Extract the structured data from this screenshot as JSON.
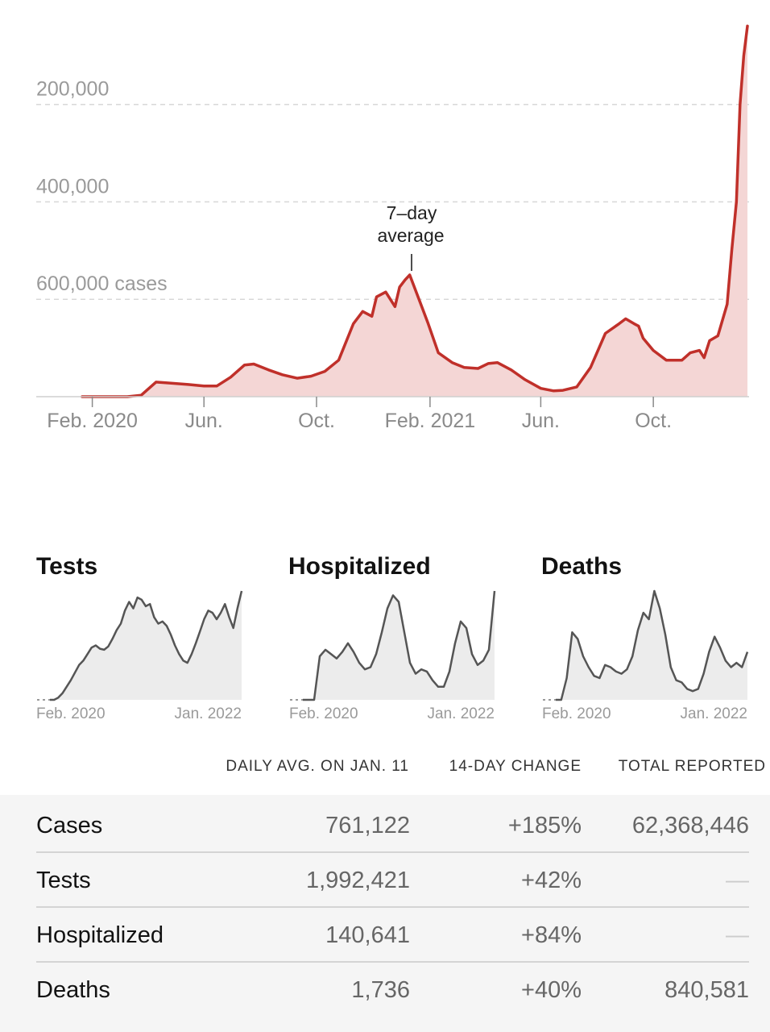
{
  "main_chart": {
    "y_ticks": [
      "600,000 cases",
      "400,000",
      "200,000"
    ],
    "x_ticks": [
      "Feb. 2020",
      "Jun.",
      "Oct.",
      "Feb. 2021",
      "Jun.",
      "Oct."
    ],
    "annotation": [
      "7–day",
      "average"
    ],
    "colors": {
      "line": "#c0302a",
      "fill": "#f4d6d5",
      "grid": "#d8d8d8"
    }
  },
  "small_charts": [
    {
      "title": "Tests",
      "x_start": "Feb. 2020",
      "x_end": "Jan. 2022"
    },
    {
      "title": "Hospitalized",
      "x_start": "Feb. 2020",
      "x_end": "Jan. 2022"
    },
    {
      "title": "Deaths",
      "x_start": "Feb. 2020",
      "x_end": "Jan. 2022"
    }
  ],
  "table": {
    "headers": {
      "daily": "DAILY AVG. ON JAN. 11",
      "change": "14-DAY CHANGE",
      "total": "TOTAL REPORTED"
    },
    "rows": [
      {
        "label": "Cases",
        "daily": "761,122",
        "change": "+185%",
        "total": "62,368,446"
      },
      {
        "label": "Tests",
        "daily": "1,992,421",
        "change": "+42%",
        "total": "—"
      },
      {
        "label": "Hospitalized",
        "daily": "140,641",
        "change": "+84%",
        "total": "—"
      },
      {
        "label": "Deaths",
        "daily": "1,736",
        "change": "+40%",
        "total": "840,581"
      }
    ]
  },
  "chart_data": [
    {
      "type": "area",
      "x": [
        "2020-01-21",
        "2020-02-15",
        "2020-03-10",
        "2020-03-25",
        "2020-04-10",
        "2020-04-25",
        "2020-05-15",
        "2020-06-01",
        "2020-06-15",
        "2020-06-30",
        "2020-07-15",
        "2020-07-25",
        "2020-08-10",
        "2020-08-25",
        "2020-09-10",
        "2020-09-25",
        "2020-10-10",
        "2020-10-25",
        "2020-11-10",
        "2020-11-20",
        "2020-11-30",
        "2020-12-05",
        "2020-12-15",
        "2020-12-25",
        "2020-12-30",
        "2021-01-05",
        "2021-01-10",
        "2021-01-20",
        "2021-01-30",
        "2021-02-10",
        "2021-02-25",
        "2021-03-10",
        "2021-03-25",
        "2021-04-05",
        "2021-04-15",
        "2021-04-30",
        "2021-05-15",
        "2021-06-01",
        "2021-06-15",
        "2021-06-25",
        "2021-07-10",
        "2021-07-25",
        "2021-08-10",
        "2021-08-25",
        "2021-09-01",
        "2021-09-10",
        "2021-09-15",
        "2021-09-20",
        "2021-10-01",
        "2021-10-15",
        "2021-11-01",
        "2021-11-10",
        "2021-11-20",
        "2021-11-25",
        "2021-12-01",
        "2021-12-10",
        "2021-12-20",
        "2021-12-25",
        "2021-12-30",
        "2022-01-03",
        "2022-01-07",
        "2022-01-11"
      ],
      "y": [
        0,
        0,
        0,
        3000,
        30000,
        28000,
        25000,
        22000,
        22000,
        40000,
        65000,
        67000,
        55000,
        45000,
        38000,
        42000,
        52000,
        75000,
        150000,
        175000,
        165000,
        205000,
        215000,
        185000,
        225000,
        240000,
        250000,
        200000,
        150000,
        90000,
        70000,
        60000,
        58000,
        68000,
        70000,
        55000,
        35000,
        17000,
        12000,
        13000,
        20000,
        60000,
        130000,
        150000,
        160000,
        150000,
        145000,
        120000,
        95000,
        75000,
        75000,
        90000,
        95000,
        80000,
        115000,
        125000,
        190000,
        300000,
        400000,
        600000,
        700000,
        761122
      ],
      "ylim": [
        0,
        760000
      ],
      "y_ticks": [
        200000,
        400000,
        600000
      ],
      "x_tick_labels": [
        "Feb. 2020",
        "Jun.",
        "Oct.",
        "Feb. 2021",
        "Jun.",
        "Oct."
      ],
      "annotation": {
        "text": "7–day average",
        "x": "2021-01-10"
      },
      "grid": true
    },
    {
      "type": "area",
      "title": "Tests",
      "x_labels": [
        "Feb. 2020",
        "Jan. 2022"
      ],
      "values": [
        0,
        0,
        0.02,
        0.06,
        0.12,
        0.18,
        0.25,
        0.32,
        0.36,
        0.42,
        0.48,
        0.5,
        0.47,
        0.46,
        0.49,
        0.56,
        0.64,
        0.7,
        0.82,
        0.9,
        0.84,
        0.94,
        0.92,
        0.86,
        0.88,
        0.76,
        0.7,
        0.72,
        0.68,
        0.6,
        0.5,
        0.42,
        0.36,
        0.34,
        0.42,
        0.52,
        0.63,
        0.74,
        0.82,
        0.8,
        0.74,
        0.8,
        0.88,
        0.76,
        0.66,
        0.84,
        1.0
      ]
    },
    {
      "type": "area",
      "title": "Hospitalized",
      "x_labels": [
        "Feb. 2020",
        "Jan. 2022"
      ],
      "values": [
        0,
        0,
        0,
        0.4,
        0.46,
        0.42,
        0.38,
        0.44,
        0.52,
        0.44,
        0.34,
        0.28,
        0.3,
        0.42,
        0.62,
        0.84,
        0.96,
        0.9,
        0.62,
        0.34,
        0.24,
        0.28,
        0.26,
        0.18,
        0.12,
        0.12,
        0.26,
        0.52,
        0.72,
        0.66,
        0.42,
        0.32,
        0.36,
        0.46,
        1.0
      ]
    },
    {
      "type": "area",
      "title": "Deaths",
      "x_labels": [
        "Feb. 2020",
        "Jan. 2022"
      ],
      "values": [
        0,
        0,
        0.2,
        0.62,
        0.56,
        0.4,
        0.3,
        0.22,
        0.2,
        0.32,
        0.3,
        0.26,
        0.24,
        0.28,
        0.4,
        0.64,
        0.8,
        0.74,
        1.0,
        0.84,
        0.6,
        0.3,
        0.18,
        0.16,
        0.1,
        0.08,
        0.1,
        0.24,
        0.44,
        0.58,
        0.48,
        0.36,
        0.3,
        0.34,
        0.3,
        0.44
      ]
    }
  ]
}
